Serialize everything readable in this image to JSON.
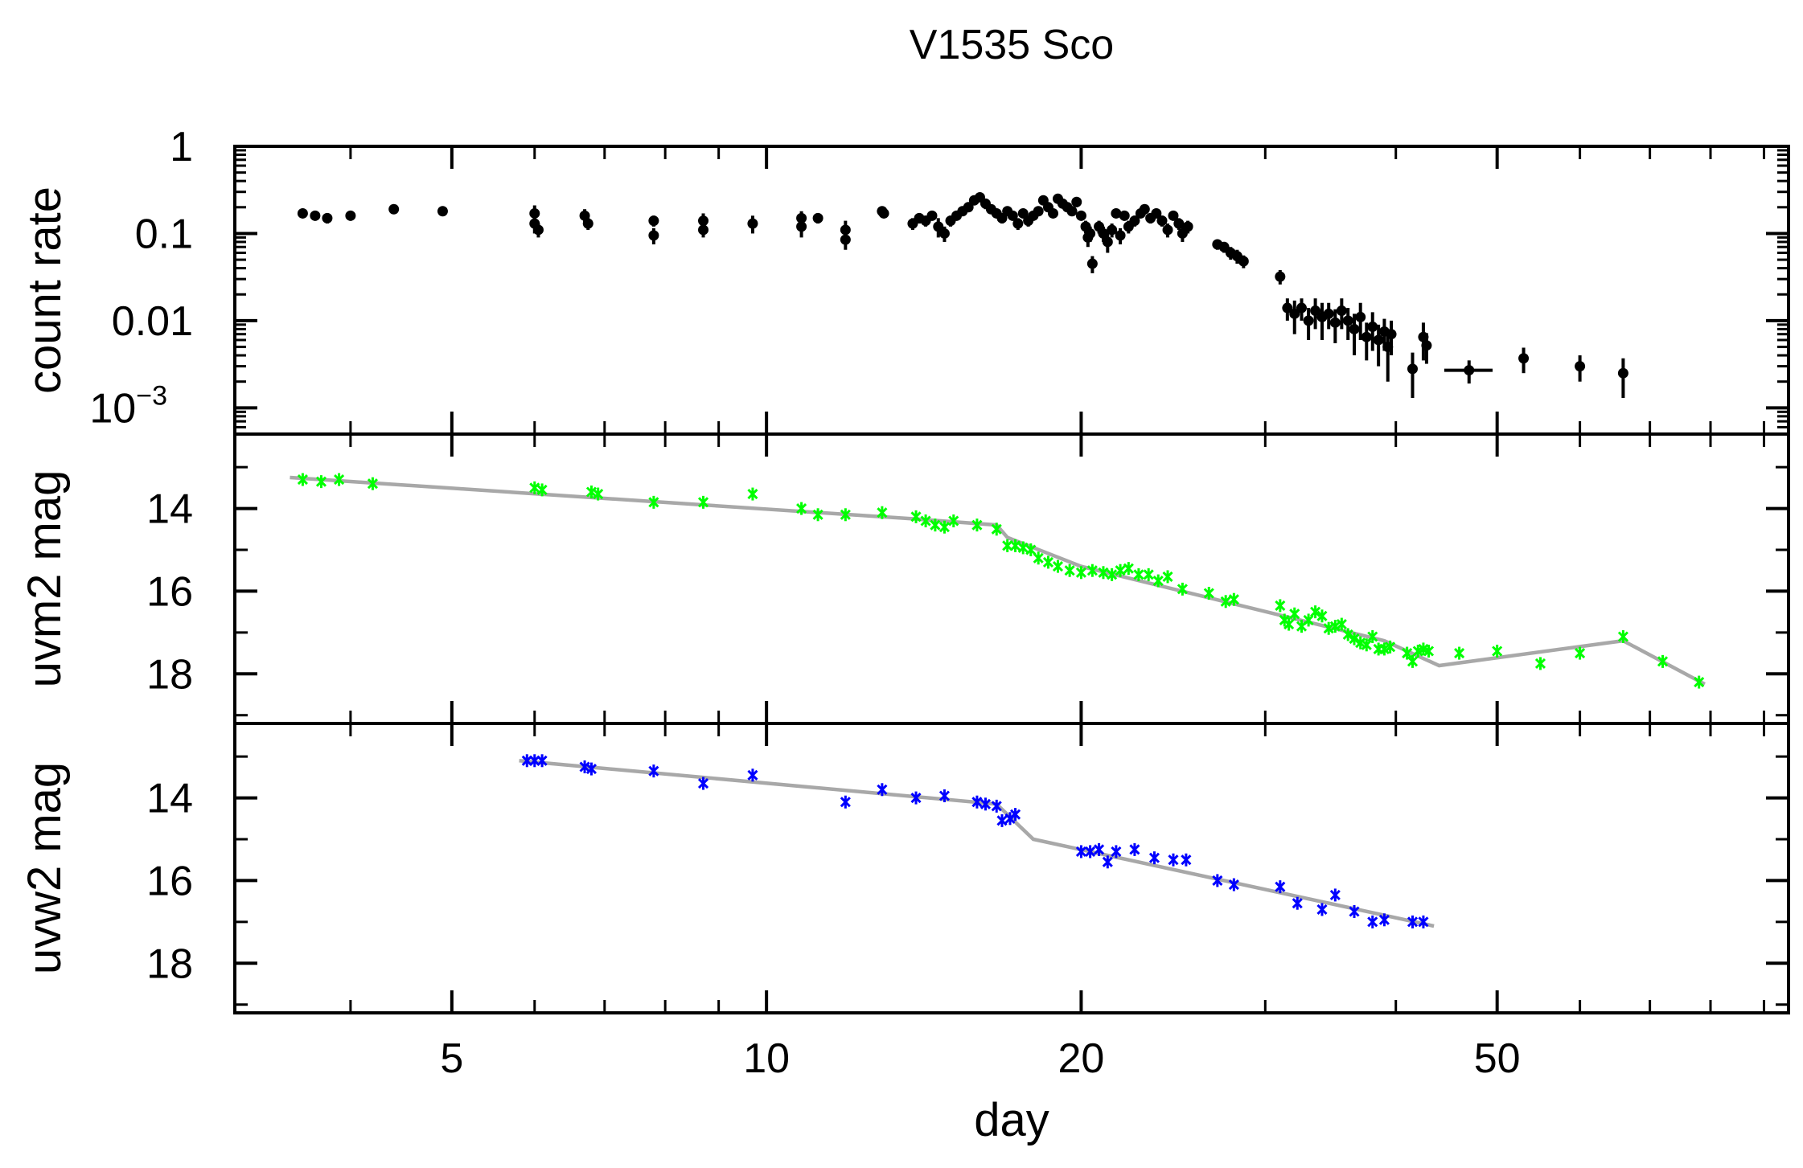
{
  "chart_data": [
    {
      "type": "scatter",
      "panel": "top",
      "title": "V1535 Sco",
      "ylabel": "count rate",
      "xlabel": "day",
      "xscale": "log",
      "yscale": "log",
      "xlim": [
        3.1,
        95
      ],
      "ylim": [
        0.0005,
        1
      ],
      "yticks": [
        {
          "value": 1,
          "label": "1"
        },
        {
          "value": 0.1,
          "label": "0.1"
        },
        {
          "value": 0.01,
          "label": "0.01"
        },
        {
          "value": 0.001,
          "label": "10",
          "sup": "−3"
        }
      ],
      "color": "#000000",
      "marker": "dot-with-errorbar",
      "points": [
        [
          3.6,
          0.17,
          0.02
        ],
        [
          3.7,
          0.16,
          0.02
        ],
        [
          3.8,
          0.15,
          0.02
        ],
        [
          4.0,
          0.16,
          0.02
        ],
        [
          4.4,
          0.19,
          0.02
        ],
        [
          4.9,
          0.18,
          0.02
        ],
        [
          6.0,
          0.17,
          0.04
        ],
        [
          6.0,
          0.13,
          0.03
        ],
        [
          6.05,
          0.11,
          0.02
        ],
        [
          6.7,
          0.16,
          0.03
        ],
        [
          6.75,
          0.13,
          0.02
        ],
        [
          7.8,
          0.14,
          0.02
        ],
        [
          7.8,
          0.095,
          0.02
        ],
        [
          8.7,
          0.14,
          0.03
        ],
        [
          8.7,
          0.11,
          0.02
        ],
        [
          9.7,
          0.13,
          0.03
        ],
        [
          10.8,
          0.15,
          0.03
        ],
        [
          10.8,
          0.12,
          0.03
        ],
        [
          11.2,
          0.15,
          0.02
        ],
        [
          11.9,
          0.11,
          0.03
        ],
        [
          11.9,
          0.085,
          0.02
        ],
        [
          12.9,
          0.18,
          0.02
        ],
        [
          12.95,
          0.17,
          0.02
        ],
        [
          13.8,
          0.13,
          0.02
        ],
        [
          14.0,
          0.15,
          0.02
        ],
        [
          14.2,
          0.14,
          0.02
        ],
        [
          14.4,
          0.16,
          0.02
        ],
        [
          14.6,
          0.12,
          0.03
        ],
        [
          14.8,
          0.1,
          0.02
        ],
        [
          15.0,
          0.14,
          0.02
        ],
        [
          15.2,
          0.16,
          0.02
        ],
        [
          15.4,
          0.18,
          0.02
        ],
        [
          15.6,
          0.2,
          0.02
        ],
        [
          15.8,
          0.24,
          0.03
        ],
        [
          16.0,
          0.26,
          0.03
        ],
        [
          16.2,
          0.22,
          0.03
        ],
        [
          16.4,
          0.19,
          0.02
        ],
        [
          16.6,
          0.17,
          0.02
        ],
        [
          16.8,
          0.15,
          0.02
        ],
        [
          17.0,
          0.18,
          0.02
        ],
        [
          17.2,
          0.16,
          0.02
        ],
        [
          17.4,
          0.13,
          0.02
        ],
        [
          17.6,
          0.17,
          0.02
        ],
        [
          17.8,
          0.14,
          0.02
        ],
        [
          18.0,
          0.16,
          0.02
        ],
        [
          18.2,
          0.18,
          0.02
        ],
        [
          18.4,
          0.24,
          0.03
        ],
        [
          18.6,
          0.2,
          0.02
        ],
        [
          18.8,
          0.17,
          0.02
        ],
        [
          19.0,
          0.25,
          0.03
        ],
        [
          19.2,
          0.22,
          0.02
        ],
        [
          19.4,
          0.2,
          0.02
        ],
        [
          19.6,
          0.18,
          0.02
        ],
        [
          19.8,
          0.23,
          0.03
        ],
        [
          20.0,
          0.16,
          0.02
        ],
        [
          20.2,
          0.12,
          0.02
        ],
        [
          20.3,
          0.09,
          0.02
        ],
        [
          20.4,
          0.1,
          0.02
        ],
        [
          20.5,
          0.045,
          0.01
        ],
        [
          20.8,
          0.12,
          0.02
        ],
        [
          21.0,
          0.1,
          0.02
        ],
        [
          21.2,
          0.08,
          0.02
        ],
        [
          21.4,
          0.11,
          0.02
        ],
        [
          21.6,
          0.17,
          0.02
        ],
        [
          21.8,
          0.095,
          0.02
        ],
        [
          22.0,
          0.16,
          0.02
        ],
        [
          22.2,
          0.12,
          0.02
        ],
        [
          22.5,
          0.14,
          0.02
        ],
        [
          22.8,
          0.17,
          0.02
        ],
        [
          23.0,
          0.19,
          0.02
        ],
        [
          23.3,
          0.15,
          0.02
        ],
        [
          23.6,
          0.17,
          0.02
        ],
        [
          23.9,
          0.14,
          0.02
        ],
        [
          24.2,
          0.11,
          0.02
        ],
        [
          24.5,
          0.16,
          0.02
        ],
        [
          24.8,
          0.13,
          0.02
        ],
        [
          25.0,
          0.1,
          0.02
        ],
        [
          25.3,
          0.12,
          0.02
        ],
        [
          27.0,
          0.075,
          0.01
        ],
        [
          27.4,
          0.07,
          0.01
        ],
        [
          27.8,
          0.06,
          0.01
        ],
        [
          28.2,
          0.055,
          0.01
        ],
        [
          28.6,
          0.048,
          0.008
        ],
        [
          31.0,
          0.032,
          0.006
        ],
        [
          31.5,
          0.014,
          0.004
        ],
        [
          32.0,
          0.012,
          0.005
        ],
        [
          32.5,
          0.014,
          0.004
        ],
        [
          33.0,
          0.01,
          0.004
        ],
        [
          33.5,
          0.013,
          0.005
        ],
        [
          34.0,
          0.011,
          0.005
        ],
        [
          34.5,
          0.012,
          0.004
        ],
        [
          35.0,
          0.0095,
          0.004
        ],
        [
          35.5,
          0.013,
          0.005
        ],
        [
          36.0,
          0.01,
          0.004
        ],
        [
          36.5,
          0.008,
          0.004
        ],
        [
          37.0,
          0.011,
          0.005
        ],
        [
          37.5,
          0.0065,
          0.003
        ],
        [
          38.0,
          0.0085,
          0.004
        ],
        [
          38.5,
          0.006,
          0.003
        ],
        [
          39.0,
          0.0075,
          0.003
        ],
        [
          39.3,
          0.005,
          0.003
        ],
        [
          39.6,
          0.007,
          0.003
        ],
        [
          41.5,
          0.0028,
          0.0015
        ],
        [
          42.5,
          0.0065,
          0.003
        ],
        [
          42.8,
          0.0052,
          0.002
        ],
        [
          47.0,
          0.0027,
          0.0008
        ],
        [
          53.0,
          0.0037,
          0.0012
        ],
        [
          60.0,
          0.003,
          0.001
        ],
        [
          66.0,
          0.0025,
          0.0012
        ]
      ]
    },
    {
      "type": "scatter",
      "panel": "middle",
      "ylabel": "uvm2 mag",
      "xscale": "log",
      "yreversed": true,
      "ylim": [
        12.2,
        19.2
      ],
      "yticks": [
        {
          "value": 14,
          "label": "14"
        },
        {
          "value": 16,
          "label": "16"
        },
        {
          "value": 18,
          "label": "18"
        }
      ],
      "color": "#00ff00",
      "marker": "x",
      "points": [
        [
          3.6,
          13.3
        ],
        [
          3.75,
          13.35
        ],
        [
          3.9,
          13.3
        ],
        [
          4.2,
          13.4
        ],
        [
          6.0,
          13.5
        ],
        [
          6.1,
          13.55
        ],
        [
          6.8,
          13.6
        ],
        [
          6.9,
          13.65
        ],
        [
          7.8,
          13.85
        ],
        [
          8.7,
          13.85
        ],
        [
          9.7,
          13.65
        ],
        [
          10.8,
          14.0
        ],
        [
          11.2,
          14.15
        ],
        [
          11.9,
          14.15
        ],
        [
          12.9,
          14.1
        ],
        [
          13.9,
          14.2
        ],
        [
          14.2,
          14.3
        ],
        [
          14.5,
          14.4
        ],
        [
          14.8,
          14.45
        ],
        [
          15.1,
          14.3
        ],
        [
          15.9,
          14.4
        ],
        [
          16.6,
          14.5
        ],
        [
          17.0,
          14.9
        ],
        [
          17.3,
          14.9
        ],
        [
          17.6,
          14.95
        ],
        [
          17.9,
          15.0
        ],
        [
          18.2,
          15.2
        ],
        [
          18.6,
          15.3
        ],
        [
          19.0,
          15.4
        ],
        [
          19.5,
          15.5
        ],
        [
          20.0,
          15.55
        ],
        [
          20.5,
          15.5
        ],
        [
          21.0,
          15.55
        ],
        [
          21.4,
          15.6
        ],
        [
          21.8,
          15.5
        ],
        [
          22.2,
          15.45
        ],
        [
          22.7,
          15.6
        ],
        [
          23.2,
          15.6
        ],
        [
          23.7,
          15.75
        ],
        [
          24.2,
          15.65
        ],
        [
          25.0,
          15.95
        ],
        [
          26.5,
          16.05
        ],
        [
          27.5,
          16.25
        ],
        [
          28.0,
          16.2
        ],
        [
          31.0,
          16.35
        ],
        [
          31.3,
          16.7
        ],
        [
          31.6,
          16.8
        ],
        [
          32.0,
          16.55
        ],
        [
          32.5,
          16.85
        ],
        [
          33.0,
          16.7
        ],
        [
          33.5,
          16.5
        ],
        [
          34.0,
          16.6
        ],
        [
          34.5,
          16.9
        ],
        [
          35.0,
          16.85
        ],
        [
          35.5,
          16.8
        ],
        [
          36.0,
          17.05
        ],
        [
          36.5,
          17.15
        ],
        [
          37.0,
          17.25
        ],
        [
          37.5,
          17.3
        ],
        [
          38.0,
          17.1
        ],
        [
          38.5,
          17.4
        ],
        [
          39.0,
          17.4
        ],
        [
          39.5,
          17.35
        ],
        [
          41.0,
          17.5
        ],
        [
          41.5,
          17.7
        ],
        [
          42.0,
          17.45
        ],
        [
          42.5,
          17.4
        ],
        [
          43.0,
          17.45
        ],
        [
          46.0,
          17.5
        ],
        [
          50.0,
          17.45
        ],
        [
          55.0,
          17.75
        ],
        [
          60.0,
          17.5
        ],
        [
          66.0,
          17.1
        ],
        [
          72.0,
          17.7
        ],
        [
          78.0,
          18.2
        ]
      ],
      "fit_line": [
        [
          3.5,
          13.25
        ],
        [
          13.8,
          14.25
        ],
        [
          16.6,
          14.4
        ],
        [
          17.0,
          14.7
        ],
        [
          20.0,
          15.4
        ],
        [
          39.0,
          17.2
        ],
        [
          44.0,
          17.8
        ],
        [
          66.0,
          17.2
        ],
        [
          79.0,
          18.25
        ]
      ]
    },
    {
      "type": "scatter",
      "panel": "bottom",
      "ylabel": "uvw2 mag",
      "xscale": "log",
      "yreversed": true,
      "ylim": [
        12.2,
        19.2
      ],
      "yticks": [
        {
          "value": 14,
          "label": "14"
        },
        {
          "value": 16,
          "label": "16"
        },
        {
          "value": 18,
          "label": "18"
        }
      ],
      "xticks": [
        {
          "value": 5,
          "label": "5"
        },
        {
          "value": 10,
          "label": "10"
        },
        {
          "value": 20,
          "label": "20"
        },
        {
          "value": 50,
          "label": "50"
        }
      ],
      "color": "#0000ff",
      "marker": "x",
      "points": [
        [
          5.9,
          13.1
        ],
        [
          6.0,
          13.1
        ],
        [
          6.1,
          13.1
        ],
        [
          6.7,
          13.25
        ],
        [
          6.8,
          13.3
        ],
        [
          7.8,
          13.35
        ],
        [
          8.7,
          13.65
        ],
        [
          9.7,
          13.45
        ],
        [
          11.9,
          14.1
        ],
        [
          12.9,
          13.8
        ],
        [
          13.9,
          14.0
        ],
        [
          14.8,
          13.95
        ],
        [
          15.9,
          14.1
        ],
        [
          16.2,
          14.15
        ],
        [
          16.6,
          14.2
        ],
        [
          16.8,
          14.55
        ],
        [
          17.1,
          14.5
        ],
        [
          17.3,
          14.4
        ],
        [
          20.0,
          15.3
        ],
        [
          20.4,
          15.3
        ],
        [
          20.8,
          15.25
        ],
        [
          21.2,
          15.55
        ],
        [
          21.6,
          15.3
        ],
        [
          22.5,
          15.25
        ],
        [
          23.5,
          15.45
        ],
        [
          24.5,
          15.5
        ],
        [
          25.2,
          15.5
        ],
        [
          27.0,
          16.0
        ],
        [
          28.0,
          16.1
        ],
        [
          31.0,
          16.15
        ],
        [
          32.2,
          16.55
        ],
        [
          34.0,
          16.7
        ],
        [
          35.0,
          16.35
        ],
        [
          36.5,
          16.75
        ],
        [
          38.0,
          17.0
        ],
        [
          39.0,
          16.95
        ],
        [
          41.5,
          17.0
        ],
        [
          42.5,
          17.0
        ]
      ],
      "fit_line": [
        [
          5.8,
          13.1
        ],
        [
          16.6,
          14.15
        ],
        [
          18.0,
          15.0
        ],
        [
          20.0,
          15.25
        ],
        [
          43.5,
          17.1
        ]
      ]
    }
  ]
}
